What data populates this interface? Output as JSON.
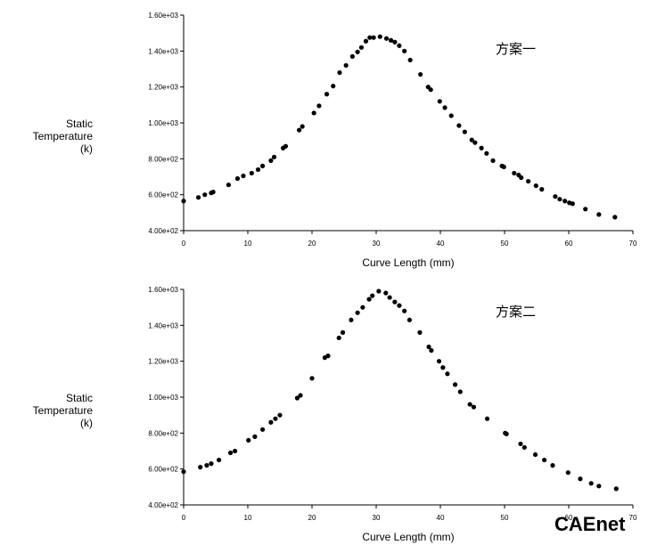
{
  "chart_data": [
    {
      "type": "scatter",
      "title": "",
      "annotation": "方案一",
      "xlabel": "Curve Length (mm)",
      "ylabel_lines": [
        "Static",
        "Temperature",
        "(k)"
      ],
      "xlim": [
        0,
        70
      ],
      "ylim": [
        400,
        1600
      ],
      "x_ticks": [
        0,
        10,
        20,
        30,
        40,
        50,
        60,
        70
      ],
      "x_tick_labels": [
        "0",
        "10",
        "20",
        "30",
        "40",
        "50",
        "60",
        "70"
      ],
      "y_ticks": [
        400,
        600,
        800,
        1000,
        1200,
        1400,
        1600
      ],
      "y_tick_labels": [
        "4.00e+02",
        "6.00e+02",
        "8.00e+02",
        "1.00e+03",
        "1.20e+03",
        "1.40e+03",
        "1.60e+03"
      ],
      "grid": false,
      "series": [
        {
          "x": [
            0,
            2.3,
            3.3,
            4.3,
            4.6,
            7,
            8.4,
            9.3,
            10.6,
            11.6,
            12.3,
            13.6,
            14.1,
            15.5,
            15.9,
            18,
            18.5,
            20.3,
            21.1,
            22.3,
            23.3,
            24.3,
            25.3,
            26.3,
            27.1,
            27.7,
            28.4,
            29,
            29.6,
            30.6,
            31.6,
            32.3,
            32.9,
            33.6,
            34.4,
            35.3,
            36.9,
            38.1,
            38.5,
            39.9,
            40.7,
            41.7,
            42.9,
            43.8,
            44.9,
            45.4,
            46.4,
            47.2,
            48.2,
            49.6,
            49.9,
            51.5,
            52.2,
            52.6,
            53.7,
            54.9,
            55.8,
            57.9,
            58.6,
            59.4,
            60.1,
            60.6,
            62.6,
            64.7,
            67.2
          ],
          "y": [
            565,
            585,
            600,
            610,
            615,
            655,
            690,
            705,
            720,
            740,
            760,
            790,
            810,
            860,
            870,
            960,
            980,
            1055,
            1095,
            1160,
            1205,
            1280,
            1320,
            1370,
            1395,
            1420,
            1455,
            1475,
            1475,
            1480,
            1470,
            1460,
            1450,
            1430,
            1400,
            1350,
            1270,
            1200,
            1185,
            1120,
            1085,
            1040,
            985,
            950,
            905,
            890,
            860,
            830,
            790,
            760,
            755,
            720,
            710,
            695,
            675,
            650,
            630,
            590,
            575,
            565,
            555,
            550,
            520,
            490,
            475
          ]
        }
      ]
    },
    {
      "type": "scatter",
      "title": "",
      "annotation": "方案二",
      "xlabel": "Curve Length (mm)",
      "ylabel_lines": [
        "Static",
        "Temperature",
        "(k)"
      ],
      "xlim": [
        0,
        70
      ],
      "ylim": [
        400,
        1600
      ],
      "x_ticks": [
        0,
        10,
        20,
        30,
        40,
        50,
        60,
        70
      ],
      "x_tick_labels": [
        "0",
        "10",
        "20",
        "30",
        "40",
        "50",
        "60",
        "70"
      ],
      "y_ticks": [
        400,
        600,
        800,
        1000,
        1200,
        1400,
        1600
      ],
      "y_tick_labels": [
        "4.00e+02",
        "6.00e+02",
        "8.00e+02",
        "1.00e+03",
        "1.20e+03",
        "1.40e+03",
        "1.60e+03"
      ],
      "grid": false,
      "series": [
        {
          "x": [
            0,
            2.6,
            3.6,
            4.3,
            5.5,
            7.3,
            8,
            10.1,
            11.1,
            12.3,
            13.6,
            14.3,
            15,
            17.7,
            18.2,
            20,
            22,
            22.5,
            24.2,
            24.8,
            26.1,
            27.1,
            27.9,
            28.9,
            29.4,
            30.4,
            31.5,
            32.1,
            32.9,
            33.6,
            34.4,
            35.2,
            36.8,
            38.2,
            38.6,
            39.8,
            40.4,
            41.1,
            42.3,
            43.1,
            44.6,
            45.2,
            47.3,
            50.1,
            50.3,
            52.5,
            53.1,
            54.8,
            56.2,
            57.5,
            59.9,
            61.8,
            63.5,
            64.7,
            67.4
          ],
          "y": [
            585,
            610,
            620,
            630,
            650,
            690,
            700,
            760,
            780,
            820,
            860,
            880,
            900,
            995,
            1010,
            1105,
            1220,
            1230,
            1330,
            1360,
            1430,
            1470,
            1500,
            1545,
            1565,
            1590,
            1580,
            1555,
            1530,
            1510,
            1480,
            1430,
            1360,
            1280,
            1260,
            1200,
            1165,
            1130,
            1070,
            1030,
            960,
            945,
            880,
            800,
            795,
            740,
            720,
            680,
            650,
            620,
            580,
            545,
            520,
            505,
            490
          ]
        }
      ]
    }
  ],
  "watermark": "CAEnet"
}
